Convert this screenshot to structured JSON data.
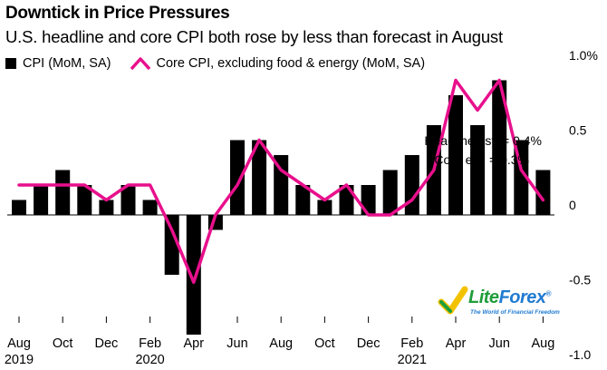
{
  "header": {
    "title": "Downtick in Price Pressures",
    "subtitle": "U.S. headline and core CPI both rose by less than forecast in August"
  },
  "legend": {
    "cpi_label": "CPI (MoM, SA)",
    "core_label": "Core CPI, excluding food & energy (MoM, SA)"
  },
  "annotations": {
    "headline_est": "Headline est. = 0.4%",
    "core_est": "Core est. = 0.3%"
  },
  "logo": {
    "name_part1": "Lite",
    "name_part2": "Forex",
    "registered": "®",
    "tagline": "The World of Financial Freedom"
  },
  "colors": {
    "bar": "#000000",
    "line": "#e8108c",
    "grid_zero": "#000000"
  },
  "chart_data": {
    "type": "bar",
    "title": "Downtick in Price Pressures",
    "subtitle": "U.S. headline and core CPI both rose by less than forecast in August",
    "categories": [
      "Aug 2019",
      "Sep 2019",
      "Oct 2019",
      "Nov 2019",
      "Dec 2019",
      "Jan 2020",
      "Feb 2020",
      "Mar 2020",
      "Apr 2020",
      "May 2020",
      "Jun 2020",
      "Jul 2020",
      "Aug 2020",
      "Sep 2020",
      "Oct 2020",
      "Nov 2020",
      "Dec 2020",
      "Jan 2021",
      "Feb 2021",
      "Mar 2021",
      "Apr 2021",
      "May 2021",
      "Jun 2021",
      "Jul 2021",
      "Aug 2021"
    ],
    "series": [
      {
        "name": "CPI (MoM, SA)",
        "kind": "bar",
        "values": [
          0.1,
          0.2,
          0.3,
          0.2,
          0.1,
          0.2,
          0.1,
          -0.4,
          -0.8,
          -0.1,
          0.5,
          0.5,
          0.4,
          0.2,
          0.1,
          0.2,
          0.2,
          0.3,
          0.4,
          0.6,
          0.8,
          0.6,
          0.9,
          0.5,
          0.3
        ]
      },
      {
        "name": "Core CPI, excluding food & energy (MoM, SA)",
        "kind": "line",
        "values": [
          0.2,
          0.2,
          0.2,
          0.2,
          0.1,
          0.2,
          0.2,
          -0.1,
          -0.45,
          0.0,
          0.2,
          0.5,
          0.3,
          0.2,
          0.1,
          0.2,
          0.0,
          0.0,
          0.1,
          0.3,
          0.9,
          0.7,
          0.9,
          0.3,
          0.1
        ]
      }
    ],
    "x_tick_labels": [
      {
        "index": 0,
        "month": "Aug",
        "year": "2019"
      },
      {
        "index": 2,
        "month": "Oct",
        "year": ""
      },
      {
        "index": 4,
        "month": "Dec",
        "year": ""
      },
      {
        "index": 6,
        "month": "Feb",
        "year": "2020"
      },
      {
        "index": 8,
        "month": "Apr",
        "year": ""
      },
      {
        "index": 10,
        "month": "Jun",
        "year": ""
      },
      {
        "index": 12,
        "month": "Aug",
        "year": ""
      },
      {
        "index": 14,
        "month": "Oct",
        "year": ""
      },
      {
        "index": 16,
        "month": "Dec",
        "year": ""
      },
      {
        "index": 18,
        "month": "Feb",
        "year": "2021"
      },
      {
        "index": 20,
        "month": "Apr",
        "year": ""
      },
      {
        "index": 22,
        "month": "Jun",
        "year": ""
      },
      {
        "index": 24,
        "month": "Aug",
        "year": ""
      }
    ],
    "y_ticks": [
      {
        "value": 1.0,
        "label": "1.0%"
      },
      {
        "value": 0.5,
        "label": "0.5"
      },
      {
        "value": 0.0,
        "label": "0"
      },
      {
        "value": -0.5,
        "label": "-0.5"
      },
      {
        "value": -1.0,
        "label": "-1.0"
      }
    ],
    "ylim": [
      -1.0,
      1.0
    ],
    "xlabel": "",
    "ylabel": "",
    "legend_position": "top-left",
    "grid": false
  }
}
